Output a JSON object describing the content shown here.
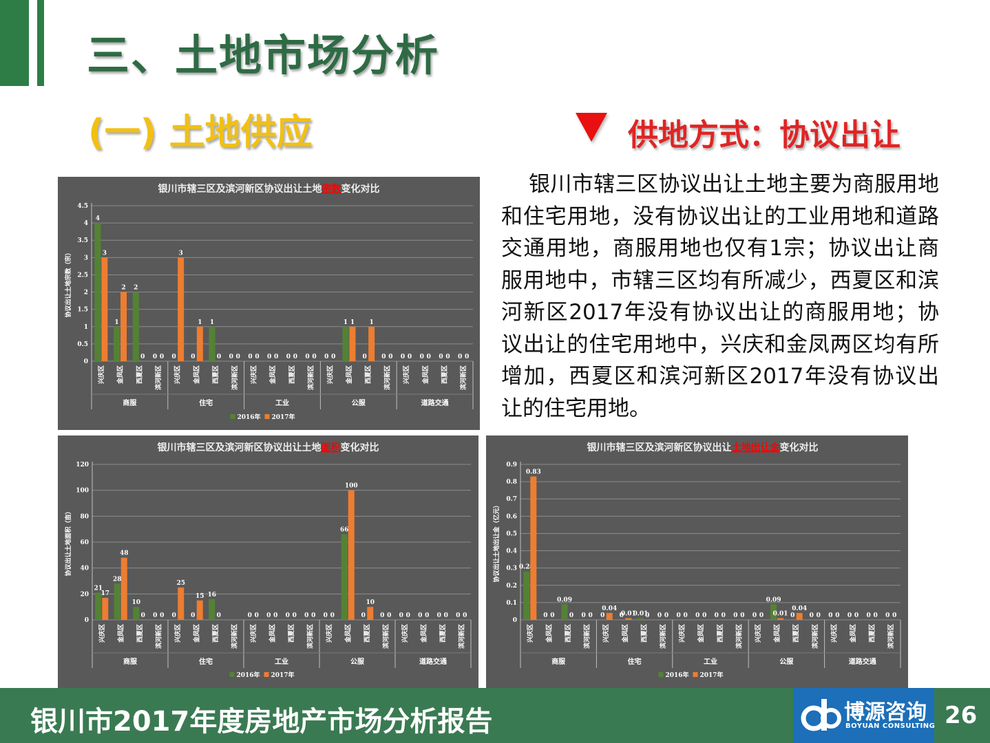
{
  "header": {
    "title": "三、土地市场分析",
    "subtitle": "(一) 土地供应",
    "method": "供地方式：协议出让"
  },
  "paragraph": "银川市辖三区协议出让土地主要为商服用地和住宅用地，没有协议出让的工业用地和道路交通用地，商服用地也仅有1宗；协议出让商服用地中，市辖三区均有所减少，西夏区和滨河新区2017年没有协议出让的商服用地；协议出让的住宅用地中，兴庆和金凤两区均有所增加，西夏区和滨河新区2017年没有协议出让的住宅用地。",
  "footer": {
    "report_title": "银川市2017年度房地产市场分析报告",
    "logo_cn": "博源咨询",
    "logo_en": "BOYUAN CONSULTING",
    "page_number": "26"
  },
  "colors": {
    "green": "#548235",
    "orange": "#ed7d31",
    "bg": "#595959",
    "highlight": "#ff0000"
  },
  "chart_data": [
    {
      "type": "bar",
      "title_prefix": "银川市辖三区及滨河新区协议出让土地",
      "title_highlight": "宗数",
      "title_suffix": "变化对比",
      "ylabel": "协议出让土地宗数（宗）",
      "ylim": [
        0,
        4.5
      ],
      "yticks": [
        "0",
        "0.5",
        "1",
        "1.5",
        "2",
        "2.5",
        "3",
        "3.5",
        "4",
        "4.5"
      ],
      "groups": [
        "商服",
        "住宅",
        "工业",
        "公服",
        "道路交通"
      ],
      "districts": [
        "兴庆区",
        "金凤区",
        "西夏区",
        "滨河新区"
      ],
      "series": [
        {
          "name": "2016年",
          "values": [
            4,
            1,
            2,
            0,
            0,
            0,
            1,
            0,
            0,
            0,
            0,
            0,
            0,
            1,
            0,
            0,
            0,
            0,
            0,
            0
          ],
          "labels": [
            "4",
            "1",
            "2",
            "0",
            "0",
            "0",
            "1",
            "0",
            "0",
            "0",
            "0",
            "0",
            "0",
            "1",
            "0",
            "0",
            "0",
            "0",
            "0",
            "0"
          ]
        },
        {
          "name": "2017年",
          "values": [
            3,
            2,
            0,
            0,
            3,
            1,
            0,
            0,
            0,
            0,
            0,
            0,
            0,
            1,
            1,
            0,
            0,
            0,
            0,
            0
          ],
          "labels": [
            "3",
            "2",
            "0",
            "0",
            "3",
            "1",
            "0",
            "0",
            "0",
            "0",
            "0",
            "0",
            "0",
            "1",
            "1",
            "0",
            "0",
            "0",
            "0",
            "0"
          ]
        }
      ]
    },
    {
      "type": "bar",
      "title_prefix": "银川市辖三区及滨河新区协议出让土地",
      "title_highlight": "面积",
      "title_suffix": "变化对比",
      "ylabel": "协议出让土地面积（亩）",
      "ylim": [
        0,
        120
      ],
      "yticks": [
        "0",
        "20",
        "40",
        "60",
        "80",
        "100",
        "120"
      ],
      "groups": [
        "商服",
        "住宅",
        "工业",
        "公服",
        "道路交通"
      ],
      "districts": [
        "兴庆区",
        "金凤区",
        "西夏区",
        "滨河新区"
      ],
      "series": [
        {
          "name": "2016年",
          "values": [
            21,
            28,
            10,
            0,
            0,
            0,
            16,
            0,
            0,
            0,
            0,
            0,
            0,
            66,
            0,
            0,
            0,
            0,
            0,
            0
          ],
          "labels": [
            "21",
            "28",
            "10",
            "0",
            "0",
            "0",
            "16",
            "",
            "0",
            "0",
            "0",
            "0",
            "0",
            "66",
            "0",
            "0",
            "0",
            "0",
            "0",
            "0"
          ]
        },
        {
          "name": "2017年",
          "values": [
            17,
            48,
            0,
            0,
            25,
            15,
            0,
            0,
            0,
            0,
            0,
            0,
            0,
            100,
            10,
            0,
            0,
            0,
            0,
            0
          ],
          "labels": [
            "17",
            "48",
            "0",
            "0",
            "25",
            "15",
            "0",
            "",
            "0",
            "0",
            "0",
            "0",
            "0",
            "100",
            "10",
            "0",
            "0",
            "0",
            "0",
            "0"
          ]
        }
      ]
    },
    {
      "type": "bar",
      "title_prefix": "银川市辖三区及滨河新区协议出让",
      "title_highlight": "土地出让金",
      "title_suffix": "变化对比",
      "ylabel": "协议出让土地出让金（亿元）",
      "ylim": [
        0,
        0.9
      ],
      "yticks": [
        "0",
        "0.1",
        "0.2",
        "0.3",
        "0.4",
        "0.5",
        "0.6",
        "0.7",
        "0.8",
        "0.9"
      ],
      "groups": [
        "商服",
        "住宅",
        "工业",
        "公服",
        "道路交通"
      ],
      "districts": [
        "兴庆区",
        "金凤区",
        "西夏区",
        "滨河新区"
      ],
      "series": [
        {
          "name": "2016年",
          "values": [
            0.28,
            0,
            0.09,
            0,
            0,
            0,
            0.01,
            0,
            0,
            0,
            0,
            0,
            0,
            0.09,
            0,
            0,
            0,
            0,
            0,
            0
          ],
          "labels": [
            "0.28",
            "0",
            "0.09",
            "0",
            "0",
            "0",
            "0.01",
            "0",
            "0",
            "0",
            "0",
            "0",
            "0",
            "0.09",
            "0",
            "0",
            "0",
            "0",
            "0",
            "0"
          ]
        },
        {
          "name": "2017年",
          "values": [
            0.83,
            0,
            0,
            0,
            0.04,
            0.01,
            0,
            0,
            0,
            0,
            0,
            0,
            0,
            0.01,
            0.04,
            0,
            0,
            0,
            0,
            0
          ],
          "labels": [
            "0.83",
            "0",
            "0",
            "0",
            "0.04",
            "0.01",
            "0",
            "0",
            "0",
            "0",
            "0",
            "0",
            "0",
            "0.01",
            "0.04",
            "0",
            "0",
            "0",
            "0",
            "0"
          ]
        }
      ]
    }
  ]
}
